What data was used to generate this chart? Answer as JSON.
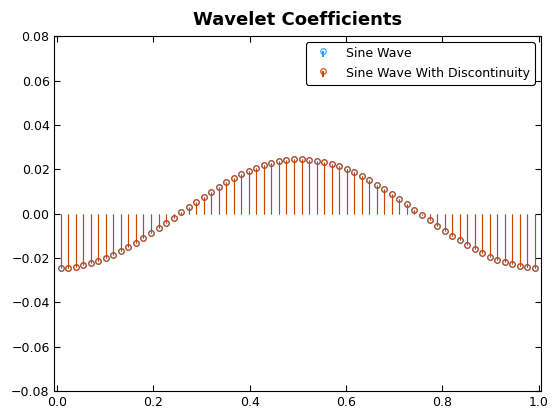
{
  "title": "Wavelet Coefficients",
  "xlim": [
    -0.005,
    1.005
  ],
  "ylim": [
    -0.08,
    0.08
  ],
  "yticks": [
    -0.08,
    -0.06,
    -0.04,
    -0.02,
    0,
    0.02,
    0.04,
    0.06,
    0.08
  ],
  "xticks": [
    0,
    0.2,
    0.4,
    0.6,
    0.8,
    1.0
  ],
  "legend_labels": [
    "Sine Wave",
    "Sine Wave With Discontinuity"
  ],
  "sine_color": "#3399ff",
  "disc_color": "#cc4400",
  "n_points": 128,
  "background_color": "#ffffff",
  "title_fontsize": 13,
  "legend_fontsize": 9,
  "marker_size": 4,
  "line_width": 0.8
}
